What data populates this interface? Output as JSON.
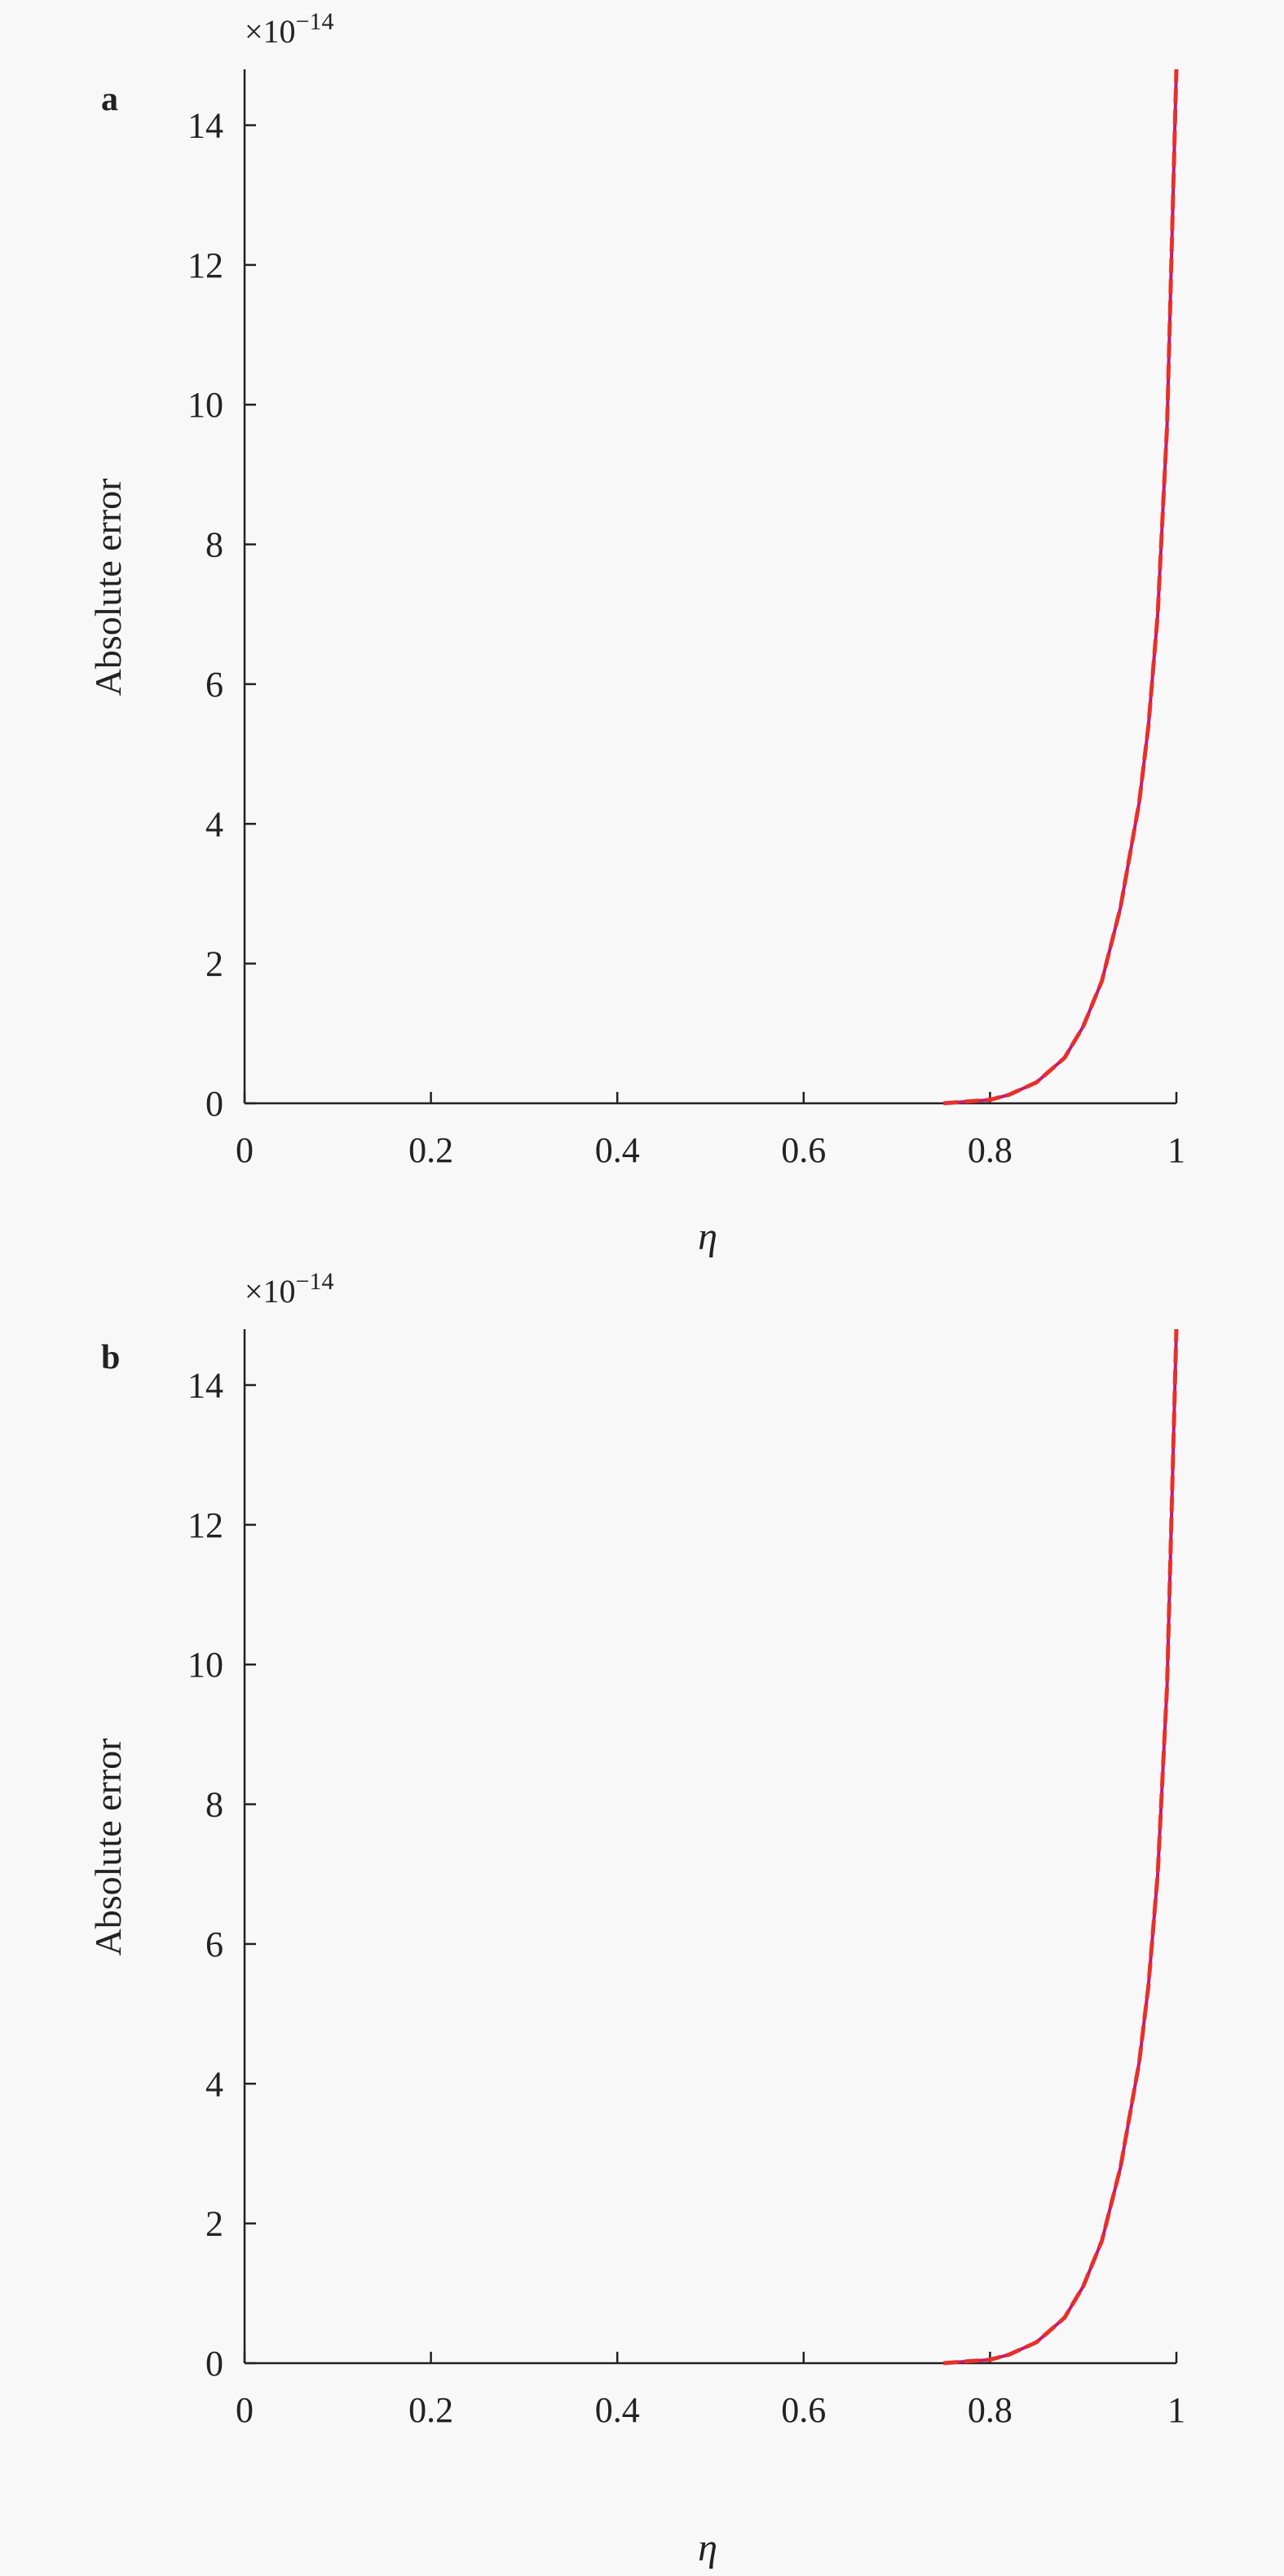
{
  "chart_data": [
    {
      "type": "line",
      "panel_label": "a",
      "xlabel": "η",
      "ylabel": "Absolute error",
      "y_multiplier": "×10",
      "y_exponent": "−14",
      "xlim": [
        0,
        1
      ],
      "ylim": [
        0,
        14.8
      ],
      "x_ticks": [
        "0",
        "0.2",
        "0.4",
        "0.6",
        "0.8",
        "1"
      ],
      "y_ticks": [
        "0",
        "2",
        "4",
        "6",
        "8",
        "10",
        "12",
        "14"
      ],
      "grid": false,
      "series": [
        {
          "color": "#c8196e",
          "style": "solid",
          "x": [
            0.75,
            0.8,
            0.82,
            0.85,
            0.88,
            0.9,
            0.92,
            0.94,
            0.96,
            0.97,
            0.98,
            0.99,
            1.0
          ],
          "y": [
            0,
            0.05,
            0.12,
            0.3,
            0.65,
            1.1,
            1.75,
            2.8,
            4.3,
            5.4,
            7.0,
            9.7,
            14.8
          ]
        },
        {
          "color": "#e8302a",
          "style": "dashed",
          "x": [
            0.75,
            0.8,
            0.82,
            0.85,
            0.88,
            0.9,
            0.92,
            0.94,
            0.96,
            0.97,
            0.98,
            0.99,
            1.0
          ],
          "y": [
            0,
            0.05,
            0.12,
            0.3,
            0.65,
            1.1,
            1.75,
            2.8,
            4.3,
            5.4,
            7.0,
            9.7,
            14.8
          ]
        }
      ]
    },
    {
      "type": "line",
      "panel_label": "b",
      "xlabel": "η",
      "ylabel": "Absolute error",
      "y_multiplier": "×10",
      "y_exponent": "−14",
      "xlim": [
        0,
        1
      ],
      "ylim": [
        0,
        14.8
      ],
      "x_ticks": [
        "0",
        "0.2",
        "0.4",
        "0.6",
        "0.8",
        "1"
      ],
      "y_ticks": [
        "0",
        "2",
        "4",
        "6",
        "8",
        "10",
        "12",
        "14"
      ],
      "grid": false,
      "series": [
        {
          "color": "#c8196e",
          "style": "solid",
          "x": [
            0.75,
            0.8,
            0.82,
            0.85,
            0.88,
            0.9,
            0.92,
            0.94,
            0.96,
            0.97,
            0.98,
            0.99,
            1.0
          ],
          "y": [
            0,
            0.05,
            0.12,
            0.3,
            0.65,
            1.1,
            1.75,
            2.8,
            4.3,
            5.4,
            7.0,
            9.7,
            14.8
          ]
        },
        {
          "color": "#e8302a",
          "style": "dashed",
          "x": [
            0.75,
            0.8,
            0.82,
            0.85,
            0.88,
            0.9,
            0.92,
            0.94,
            0.96,
            0.97,
            0.98,
            0.99,
            1.0
          ],
          "y": [
            0,
            0.05,
            0.12,
            0.3,
            0.65,
            1.1,
            1.75,
            2.8,
            4.3,
            5.4,
            7.0,
            9.7,
            14.8
          ]
        }
      ]
    }
  ]
}
